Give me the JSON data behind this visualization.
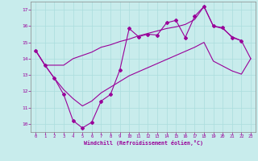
{
  "xlabel": "Windchill (Refroidissement éolien,°C)",
  "background_color": "#c8ecec",
  "line_color": "#990099",
  "grid_color": "#aadddd",
  "xlim": [
    -0.5,
    23.5
  ],
  "ylim": [
    9.5,
    17.5
  ],
  "xticks": [
    0,
    1,
    2,
    3,
    4,
    5,
    6,
    7,
    8,
    9,
    10,
    11,
    12,
    13,
    14,
    15,
    16,
    17,
    18,
    19,
    20,
    21,
    22,
    23
  ],
  "yticks": [
    10,
    11,
    12,
    13,
    14,
    15,
    16,
    17
  ],
  "hours": [
    0,
    1,
    2,
    3,
    4,
    5,
    6,
    7,
    8,
    9,
    10,
    11,
    12,
    13,
    14,
    15,
    16,
    17,
    18,
    19,
    20,
    21,
    22,
    23
  ],
  "main_line_x": [
    0,
    1,
    2,
    3,
    4,
    5,
    6,
    7,
    8,
    9,
    10,
    11,
    12,
    13,
    14,
    15,
    16,
    17,
    18,
    19,
    20,
    21,
    22
  ],
  "main_line_y": [
    14.5,
    13.6,
    12.8,
    11.8,
    10.2,
    9.75,
    10.1,
    11.4,
    11.8,
    13.3,
    15.85,
    15.35,
    15.5,
    15.45,
    16.2,
    16.35,
    15.3,
    16.6,
    17.2,
    16.0,
    15.9,
    15.3,
    15.1
  ],
  "upper_line": [
    14.5,
    13.6,
    13.6,
    13.6,
    14.0,
    14.2,
    14.4,
    14.7,
    14.85,
    15.05,
    15.2,
    15.4,
    15.55,
    15.7,
    15.85,
    15.95,
    16.1,
    16.4,
    17.2,
    16.0,
    15.85,
    15.35,
    15.1,
    14.0
  ],
  "lower_line": [
    14.5,
    13.6,
    12.8,
    12.1,
    11.55,
    11.1,
    11.4,
    11.9,
    12.25,
    12.6,
    12.95,
    13.2,
    13.45,
    13.7,
    13.95,
    14.2,
    14.45,
    14.7,
    15.0,
    13.85,
    13.55,
    13.25,
    13.05,
    14.0
  ]
}
